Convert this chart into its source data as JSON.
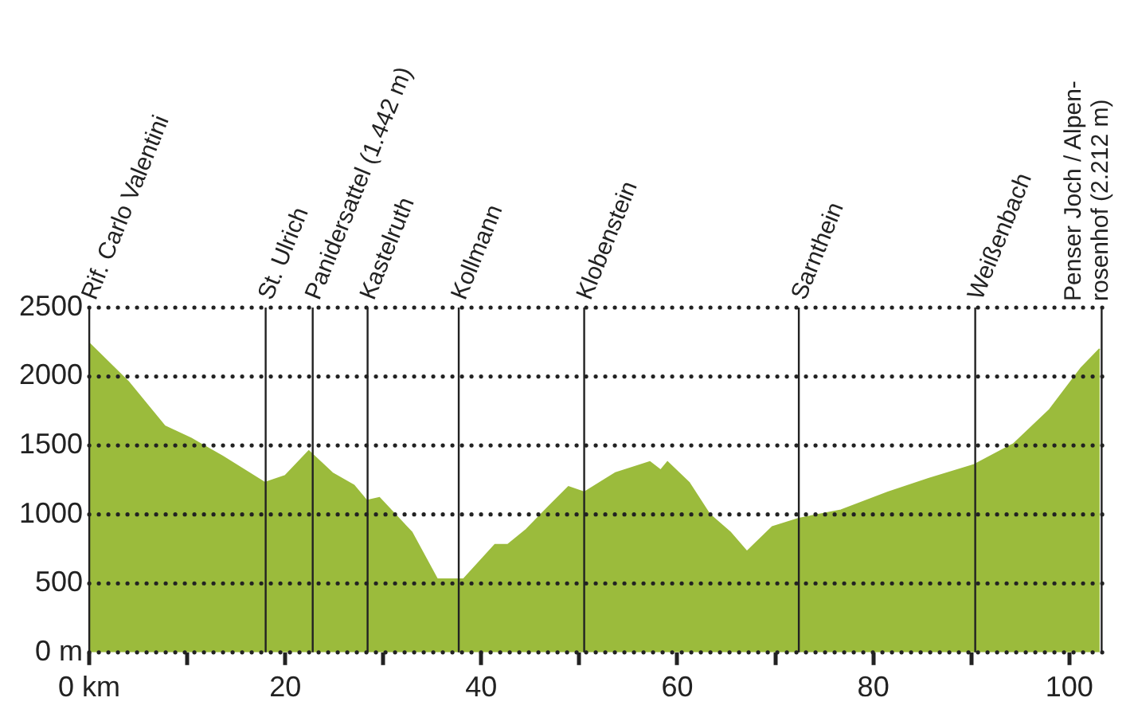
{
  "chart_data": {
    "type": "area",
    "color": "#9bbb3c",
    "x": [
      0,
      4,
      7.7,
      10.4,
      13.6,
      17.9,
      20,
      22.4,
      24.8,
      27,
      28.3,
      29.6,
      32.9,
      35.5,
      38.2,
      41.4,
      42.7,
      44.6,
      46.8,
      48.9,
      50.5,
      53.7,
      57.2,
      58.3,
      59,
      61.2,
      63.3,
      65.4,
      67.1,
      69.7,
      72.4,
      76.7,
      81.5,
      85.7,
      90.3,
      94.3,
      98,
      101.2,
      103.1
    ],
    "values": [
      2240,
      1960,
      1640,
      1550,
      1420,
      1230,
      1280,
      1460,
      1300,
      1210,
      1100,
      1120,
      870,
      530,
      530,
      780,
      780,
      890,
      1050,
      1200,
      1160,
      1300,
      1380,
      1320,
      1380,
      1230,
      1000,
      870,
      730,
      910,
      970,
      1030,
      1160,
      1260,
      1360,
      1510,
      1760,
      2060,
      2200
    ],
    "xlim": [
      0,
      104
    ],
    "xticks": [
      {
        "value": 0,
        "label": "0 km"
      },
      {
        "value": 10,
        "label": null
      },
      20,
      {
        "value": 30,
        "label": null
      },
      40,
      {
        "value": 50,
        "label": null
      },
      60,
      {
        "value": 70,
        "label": null
      },
      80,
      {
        "value": 90,
        "label": null
      },
      100
    ],
    "ylim": [
      0,
      2500
    ],
    "yticks": [
      {
        "value": 0,
        "label": "0 m"
      },
      500,
      1000,
      1500,
      2000,
      2500
    ],
    "grid": "y",
    "ref_lines": [
      {
        "axis": "x",
        "value": 0,
        "label": "Rif. Carlo Valentini",
        "color": "#222222"
      },
      {
        "axis": "x",
        "value": 18,
        "label": "St. Ulrich",
        "color": "#222222"
      },
      {
        "axis": "x",
        "value": 22.8,
        "label": "Panidersattel (1.442 m)",
        "color": "#222222"
      },
      {
        "axis": "x",
        "value": 28.4,
        "label": "Kastelruth",
        "color": "#222222"
      },
      {
        "axis": "x",
        "value": 37.7,
        "label": "Kollmann",
        "color": "#222222"
      },
      {
        "axis": "x",
        "value": 50.5,
        "label": "Klobenstein",
        "color": "#222222"
      },
      {
        "axis": "x",
        "value": 72.4,
        "label": "Sarnthein",
        "color": "#222222"
      },
      {
        "axis": "x",
        "value": 90.4,
        "label": "Weißenbach",
        "color": "#222222"
      },
      {
        "axis": "x",
        "value": 103.3,
        "label": "Penser Joch / Alpen-\nrosenhof (2.212 m)",
        "color": "#222222"
      }
    ]
  }
}
